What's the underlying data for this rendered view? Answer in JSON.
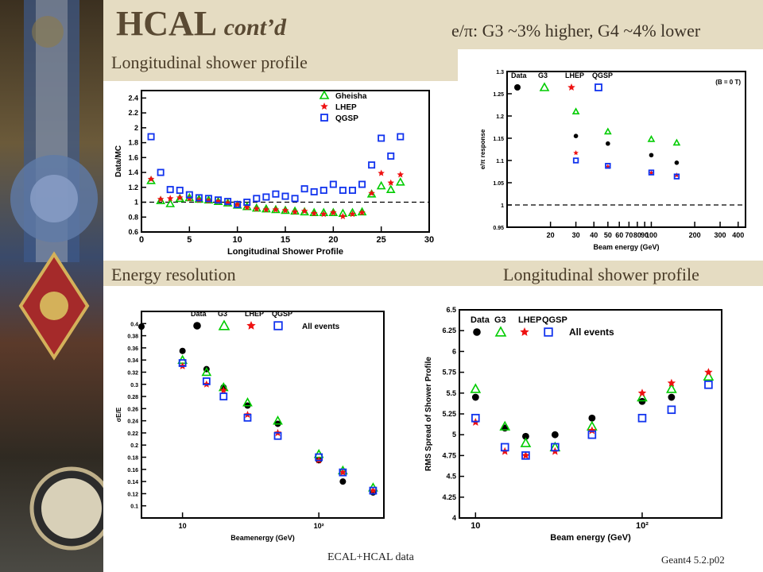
{
  "slide": {
    "title": "HCAL",
    "title_suffix": "cont’d",
    "subtitle": "e/π: G3 ~3% higher, G4 ~4% lower",
    "label_top_left": "Longitudinal shower profile",
    "label_mid_left": "Energy resolution",
    "label_mid_right": "Longitudinal shower profile",
    "footer": "ECAL+HCAL  data",
    "page_number": "Geant4 5.2.p02"
  },
  "colors": {
    "band": "#e5dcc2",
    "title": "#5a4a33",
    "data": "#000000",
    "g3": "#00cc00",
    "lhep": "#ee1111",
    "qgsp": "#1133ee"
  },
  "chart_data": [
    {
      "id": "profile_ratio",
      "type": "scatter",
      "xlabel": "Longitudinal Shower Profile",
      "ylabel": "Data/MC",
      "xlim": [
        0,
        30
      ],
      "ylim": [
        0.6,
        2.5
      ],
      "xticks": [
        "0",
        "5",
        "10",
        "15",
        "20",
        "25",
        "30"
      ],
      "yticks": [
        "0.6",
        "0.8",
        "1",
        "1.2",
        "1.4",
        "1.6",
        "1.8",
        "2",
        "2.2",
        "2.4"
      ],
      "legend": [
        "Gheisha",
        "LHEP",
        "QGSP"
      ],
      "reference_line": 1,
      "series": [
        {
          "name": "Gheisha",
          "marker": "triangle",
          "x": [
            1,
            2,
            3,
            4,
            5,
            6,
            7,
            8,
            9,
            10,
            11,
            12,
            13,
            14,
            15,
            16,
            17,
            18,
            19,
            20,
            21,
            22,
            23,
            24,
            25,
            26,
            27
          ],
          "y": [
            1.29,
            1.02,
            0.98,
            1.05,
            1.06,
            1.04,
            1.03,
            1.01,
            0.99,
            0.96,
            0.94,
            0.92,
            0.91,
            0.9,
            0.89,
            0.88,
            0.87,
            0.86,
            0.86,
            0.86,
            0.85,
            0.86,
            0.87,
            1.11,
            1.22,
            1.17,
            1.27
          ]
        },
        {
          "name": "LHEP",
          "marker": "star",
          "x": [
            1,
            2,
            3,
            4,
            5,
            6,
            7,
            8,
            9,
            10,
            11,
            12,
            13,
            14,
            15,
            16,
            17,
            18,
            19,
            20,
            21,
            22,
            23,
            24,
            25,
            26,
            27
          ],
          "y": [
            1.31,
            1.04,
            1.05,
            1.06,
            1.05,
            1.03,
            1.02,
            1.01,
            0.99,
            0.97,
            0.93,
            0.91,
            0.9,
            0.9,
            0.89,
            0.87,
            0.88,
            0.85,
            0.84,
            0.86,
            0.81,
            0.84,
            0.86,
            1.12,
            1.39,
            1.26,
            1.37
          ]
        },
        {
          "name": "QGSP",
          "marker": "square",
          "x": [
            1,
            2,
            3,
            4,
            5,
            6,
            7,
            8,
            9,
            10,
            11,
            12,
            13,
            14,
            15,
            16,
            17,
            18,
            19,
            20,
            21,
            22,
            23,
            24,
            25,
            26,
            27
          ],
          "y": [
            1.88,
            1.4,
            1.17,
            1.16,
            1.1,
            1.06,
            1.05,
            1.03,
            1.01,
            0.97,
            1.0,
            1.05,
            1.07,
            1.11,
            1.08,
            1.05,
            1.18,
            1.14,
            1.16,
            1.24,
            1.16,
            1.16,
            1.24,
            1.5,
            1.86,
            1.62,
            1.88
          ]
        }
      ]
    },
    {
      "id": "e_pi_response",
      "type": "scatter",
      "xlabel": "Beam energy (GeV)",
      "ylabel": "e/π response",
      "annotation": "(B = 0 T)",
      "xscale": "log",
      "xlim": [
        10,
        450
      ],
      "ylim": [
        0.95,
        1.3
      ],
      "xticks": [
        {
          "v": 20,
          "t": "20"
        },
        {
          "v": 30,
          "t": "30"
        },
        {
          "v": 40,
          "t": "40"
        },
        {
          "v": 50,
          "t": "50"
        },
        {
          "v": 60,
          "t": "60"
        },
        {
          "v": 70,
          "t": "70"
        },
        {
          "v": 80,
          "t": "80"
        },
        {
          "v": 90,
          "t": "90"
        },
        {
          "v": 100,
          "t": "100"
        },
        {
          "v": 200,
          "t": "200"
        },
        {
          "v": 300,
          "t": "300"
        },
        {
          "v": 400,
          "t": "400"
        }
      ],
      "yticks": [
        "0.95",
        "1",
        "1.05",
        "1.1",
        "1.15",
        "1.2",
        "1.25",
        "1.3"
      ],
      "legend": [
        "Data",
        "G3",
        "LHEP",
        "QGSP"
      ],
      "reference_line": 1,
      "series": [
        {
          "name": "Data",
          "marker": "circle",
          "x": [
            30,
            50,
            100,
            150
          ],
          "y": [
            1.155,
            1.138,
            1.112,
            1.095
          ]
        },
        {
          "name": "G3",
          "marker": "triangle",
          "x": [
            30,
            50,
            100,
            150
          ],
          "y": [
            1.21,
            1.165,
            1.148,
            1.14
          ]
        },
        {
          "name": "LHEP",
          "marker": "star",
          "x": [
            30,
            50,
            100,
            150
          ],
          "y": [
            1.117,
            1.086,
            1.072,
            1.067
          ]
        },
        {
          "name": "QGSP",
          "marker": "square",
          "x": [
            30,
            50,
            100,
            150
          ],
          "y": [
            1.1,
            1.088,
            1.073,
            1.064
          ]
        }
      ]
    },
    {
      "id": "energy_resolution",
      "type": "scatter",
      "xlabel": "Beamenergy (GeV)",
      "ylabel": "σE/E",
      "xscale": "log",
      "xlim": [
        5,
        300
      ],
      "ylim": [
        0.08,
        0.42
      ],
      "xticks": [
        {
          "v": 10,
          "t": "10"
        },
        {
          "v": 100,
          "t": "10²"
        }
      ],
      "yticks": [
        "0.1",
        "0.12",
        "0.14",
        "0.16",
        "0.18",
        "0.2",
        "0.22",
        "0.24",
        "0.26",
        "0.28",
        "0.3",
        "0.32",
        "0.34",
        "0.36",
        "0.38",
        "0.4"
      ],
      "legend": [
        "Data",
        "G3",
        "LHEP",
        "QGSP"
      ],
      "legend_note": "All events",
      "series": [
        {
          "name": "Data",
          "marker": "circle",
          "x": [
            5,
            10,
            15,
            20,
            30,
            50,
            100,
            150,
            250
          ],
          "y": [
            0.395,
            0.355,
            0.325,
            0.295,
            0.265,
            0.235,
            0.175,
            0.14,
            0.122
          ]
        },
        {
          "name": "G3",
          "marker": "triangle",
          "x": [
            10,
            15,
            20,
            30,
            50,
            100,
            150,
            250
          ],
          "y": [
            0.34,
            0.32,
            0.295,
            0.27,
            0.24,
            0.185,
            0.158,
            0.13
          ]
        },
        {
          "name": "LHEP",
          "marker": "star",
          "x": [
            10,
            15,
            20,
            30,
            50,
            100,
            150,
            250
          ],
          "y": [
            0.33,
            0.3,
            0.29,
            0.25,
            0.22,
            0.175,
            0.155,
            0.125
          ]
        },
        {
          "name": "QGSP",
          "marker": "square",
          "x": [
            10,
            15,
            20,
            30,
            50,
            100,
            150,
            250
          ],
          "y": [
            0.335,
            0.305,
            0.28,
            0.245,
            0.215,
            0.18,
            0.155,
            0.125
          ]
        }
      ]
    },
    {
      "id": "rms_spread",
      "type": "scatter",
      "xlabel": "Beam energy (GeV)",
      "ylabel": "RMS Spread of Shower Profile",
      "xscale": "log",
      "xlim": [
        8,
        300
      ],
      "ylim": [
        4,
        6.5
      ],
      "xticks": [
        {
          "v": 10,
          "t": "10"
        },
        {
          "v": 100,
          "t": "10²"
        }
      ],
      "yticks": [
        "4",
        "4.25",
        "4.5",
        "4.75",
        "5",
        "5.25",
        "5.5",
        "5.75",
        "6",
        "6.25",
        "6.5"
      ],
      "legend": [
        "Data",
        "G3",
        "LHEP",
        "QGSP"
      ],
      "legend_note": "All events",
      "series": [
        {
          "name": "Data",
          "marker": "circle",
          "x": [
            10,
            15,
            20,
            30,
            50,
            100,
            150
          ],
          "y": [
            5.45,
            5.08,
            4.98,
            5.0,
            5.2,
            5.4,
            5.45
          ]
        },
        {
          "name": "G3",
          "marker": "triangle",
          "x": [
            10,
            15,
            20,
            30,
            50,
            100,
            150,
            250
          ],
          "y": [
            5.55,
            5.1,
            4.9,
            4.85,
            5.1,
            5.45,
            5.55,
            5.7
          ]
        },
        {
          "name": "LHEP",
          "marker": "star",
          "x": [
            10,
            15,
            20,
            30,
            50,
            100,
            150,
            250
          ],
          "y": [
            5.15,
            4.8,
            4.75,
            4.8,
            5.05,
            5.5,
            5.62,
            5.75
          ]
        },
        {
          "name": "QGSP",
          "marker": "square",
          "x": [
            10,
            15,
            20,
            30,
            50,
            100,
            150,
            250
          ],
          "y": [
            5.2,
            4.85,
            4.75,
            4.85,
            5.0,
            5.2,
            5.3,
            5.6
          ]
        }
      ]
    }
  ]
}
